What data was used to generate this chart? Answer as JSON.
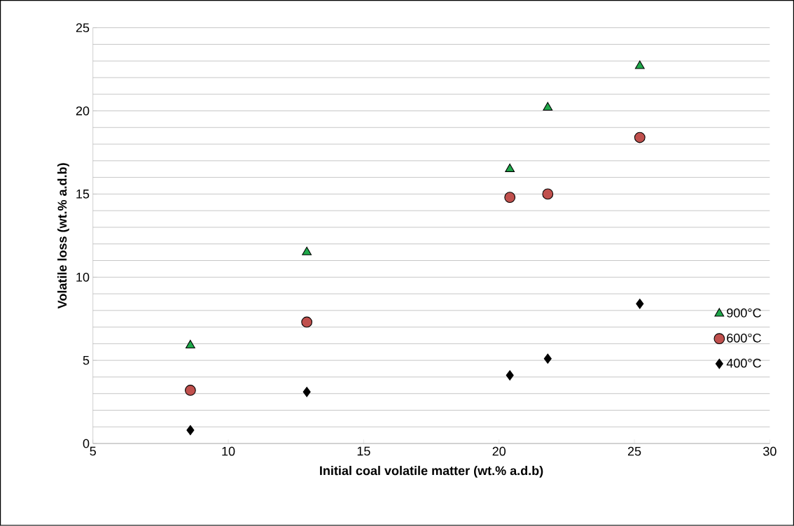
{
  "chart_data": {
    "type": "scatter",
    "xlabel": "Initial coal volatile matter (wt.% a.d.b)",
    "ylabel": "Volatile loss (wt.% a.d.b)",
    "x": [
      8.6,
      12.9,
      20.4,
      21.8,
      25.2
    ],
    "series": [
      {
        "name": "900°C",
        "color": "#1fa84a",
        "marker": "triangle",
        "values": [
          5.9,
          11.5,
          16.5,
          20.2,
          22.7
        ]
      },
      {
        "name": "600°C",
        "color": "#c0504d",
        "marker": "circle",
        "values": [
          3.2,
          7.3,
          14.8,
          15.0,
          18.4
        ]
      },
      {
        "name": "400°C",
        "color": "#000000",
        "marker": "diamond",
        "values": [
          0.8,
          3.1,
          4.1,
          5.1,
          8.4
        ]
      }
    ],
    "xlim": [
      5,
      30
    ],
    "xticks": [
      5,
      10,
      15,
      20,
      25,
      30
    ],
    "ylim": [
      0,
      25
    ],
    "yticks": [
      0,
      5,
      10,
      15,
      20,
      25
    ],
    "grid": "y",
    "legend": "right"
  }
}
